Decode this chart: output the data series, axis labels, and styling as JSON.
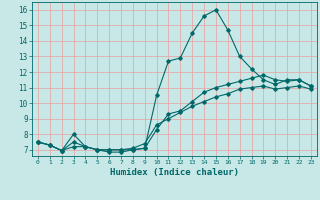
{
  "title": "",
  "xlabel": "Humidex (Indice chaleur)",
  "ylabel": "",
  "background_color": "#c8e8e8",
  "grid_color": "#e8a0a0",
  "line_color": "#006868",
  "xlim": [
    -0.5,
    23.5
  ],
  "ylim": [
    6.6,
    16.5
  ],
  "xticks": [
    0,
    1,
    2,
    3,
    4,
    5,
    6,
    7,
    8,
    9,
    10,
    11,
    12,
    13,
    14,
    15,
    16,
    17,
    18,
    19,
    20,
    21,
    22,
    23
  ],
  "yticks": [
    7,
    8,
    9,
    10,
    11,
    12,
    13,
    14,
    15,
    16
  ],
  "line1_x": [
    0,
    1,
    2,
    3,
    4,
    5,
    6,
    7,
    8,
    9,
    10,
    11,
    12,
    13,
    14,
    15,
    16,
    17,
    18,
    19,
    20,
    21,
    22,
    23
  ],
  "line1_y": [
    7.5,
    7.3,
    6.95,
    8.0,
    7.2,
    7.0,
    6.85,
    6.85,
    7.0,
    7.1,
    10.5,
    12.7,
    12.9,
    14.5,
    15.6,
    16.0,
    14.7,
    13.0,
    12.2,
    11.5,
    11.2,
    11.5,
    11.5,
    11.1
  ],
  "line2_x": [
    0,
    1,
    2,
    3,
    4,
    5,
    6,
    7,
    8,
    9,
    10,
    11,
    12,
    13,
    14,
    15,
    16,
    17,
    18,
    19,
    20,
    21,
    22,
    23
  ],
  "line2_y": [
    7.5,
    7.3,
    6.95,
    7.5,
    7.2,
    7.0,
    7.0,
    7.0,
    7.0,
    7.1,
    8.3,
    9.3,
    9.5,
    10.1,
    10.7,
    11.0,
    11.2,
    11.4,
    11.6,
    11.8,
    11.5,
    11.4,
    11.5,
    11.1
  ],
  "line3_x": [
    0,
    1,
    2,
    3,
    4,
    5,
    6,
    7,
    8,
    9,
    10,
    11,
    12,
    13,
    14,
    15,
    16,
    17,
    18,
    19,
    20,
    21,
    22,
    23
  ],
  "line3_y": [
    7.5,
    7.3,
    6.95,
    7.2,
    7.2,
    7.0,
    7.0,
    7.0,
    7.1,
    7.4,
    8.6,
    9.0,
    9.4,
    9.8,
    10.1,
    10.4,
    10.6,
    10.9,
    11.0,
    11.1,
    10.9,
    11.0,
    11.1,
    10.9
  ],
  "xlabel_fontsize": 6.5,
  "xtick_fontsize": 4.5,
  "ytick_fontsize": 5.5
}
